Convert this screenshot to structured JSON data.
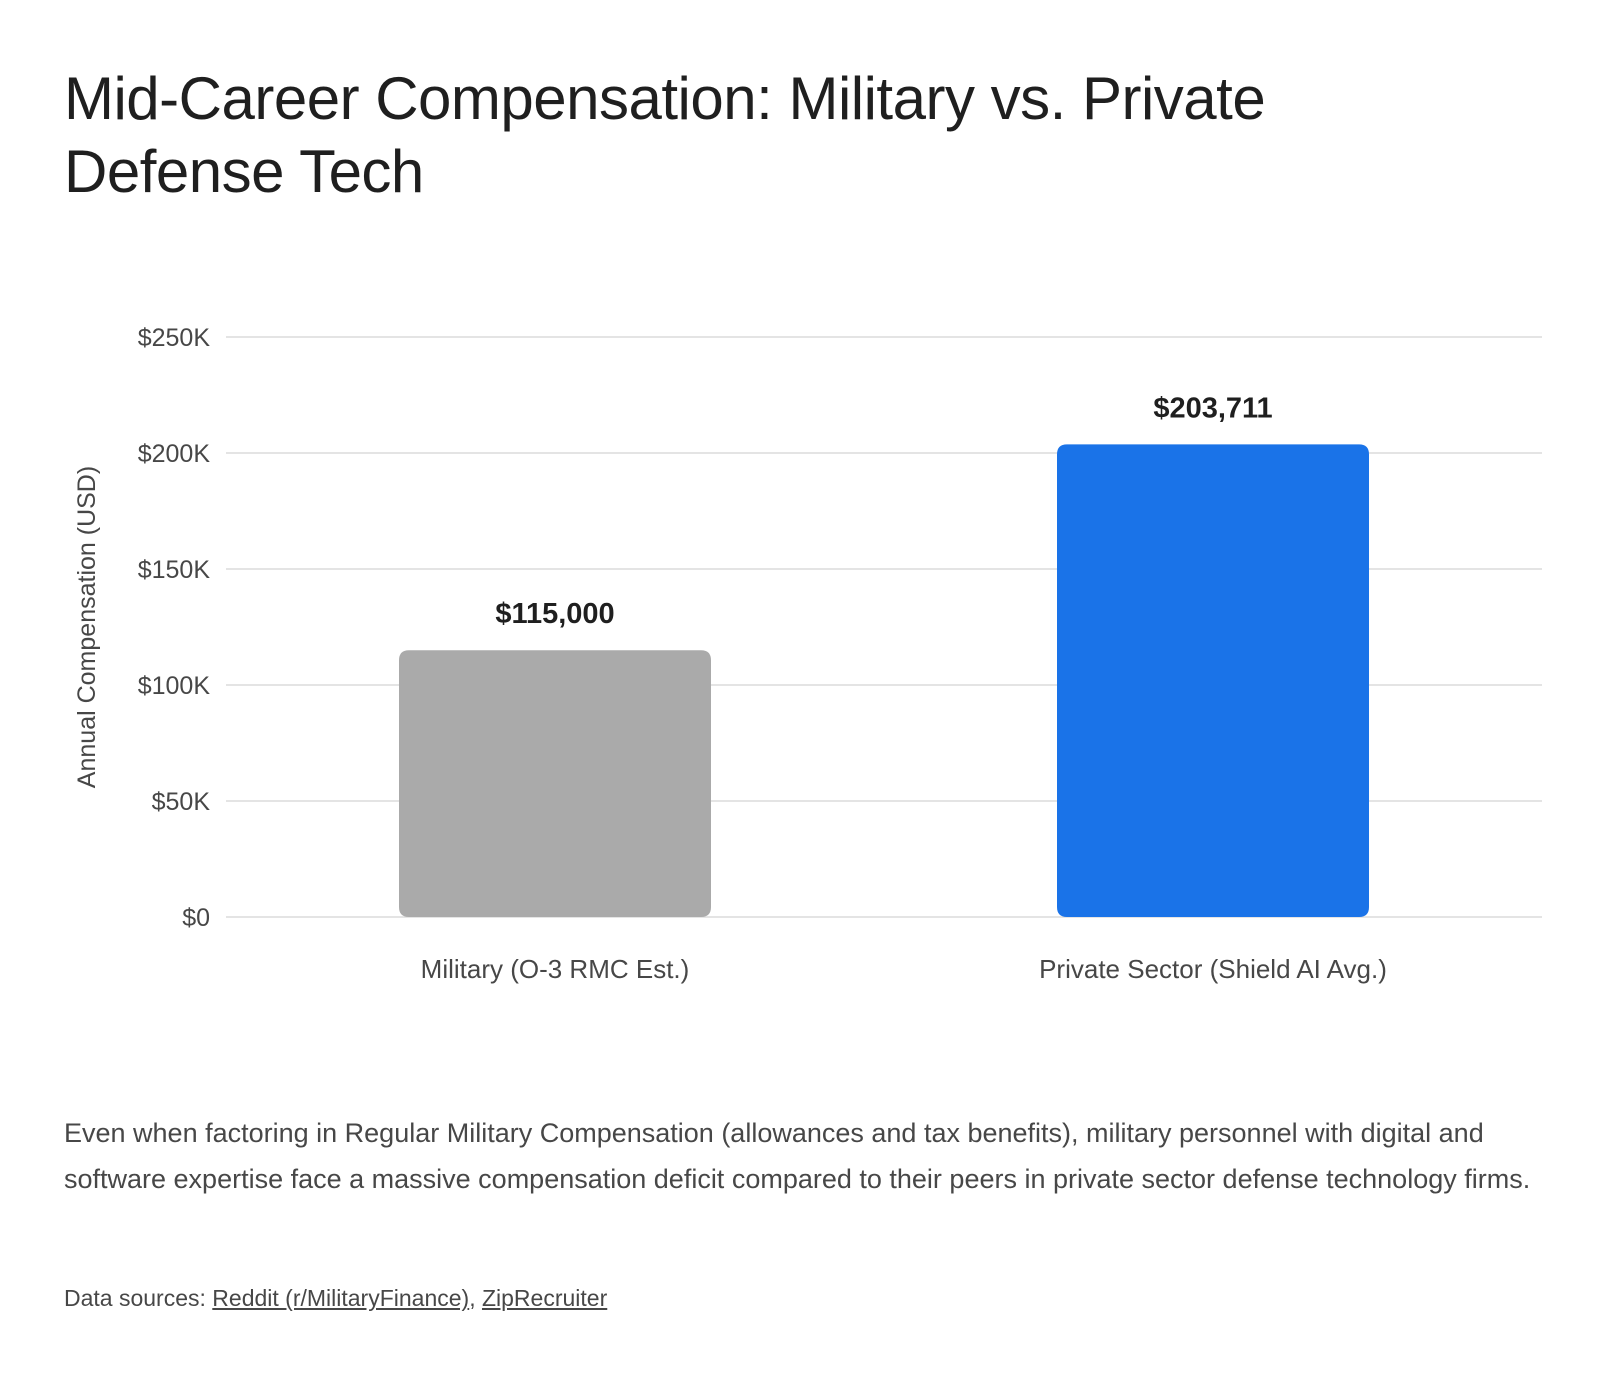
{
  "title": "Mid-Career Compensation: Military vs. Private Defense Tech",
  "chart_data": {
    "type": "bar",
    "categories": [
      "Military (O-3 RMC Est.)",
      "Private Sector (Shield AI Avg.)"
    ],
    "values": [
      115000,
      203711
    ],
    "value_labels": [
      "$115,000",
      "$203,711"
    ],
    "colors": [
      "#aaaaaa",
      "#1a73e8"
    ],
    "title": "Mid-Career Compensation: Military vs. Private Defense Tech",
    "xlabel": "",
    "ylabel": "Annual Compensation (USD)",
    "ylim": [
      0,
      250000
    ],
    "yticks": [
      0,
      50000,
      100000,
      150000,
      200000,
      250000
    ],
    "ytick_labels": [
      "$0",
      "$50K",
      "$100K",
      "$150K",
      "$200K",
      "$250K"
    ],
    "grid": true,
    "legend": "none"
  },
  "caption": "Even when factoring in Regular Military Compensation (allowances and tax benefits), military personnel with digital and software expertise face a massive compensation deficit compared to their peers in private sector defense technology firms.",
  "sources": {
    "prefix": "Data sources:",
    "links": [
      "Reddit (r/MilitaryFinance)",
      "ZipRecruiter"
    ],
    "separator": ","
  }
}
